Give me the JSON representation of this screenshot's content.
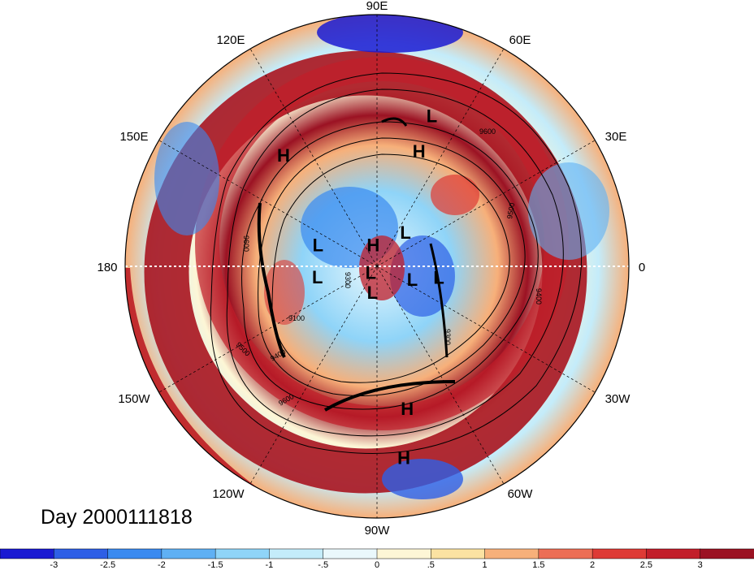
{
  "title": "Day 2000111818",
  "longitude_labels": [
    "90E",
    "60E",
    "30E",
    "0",
    "30W",
    "60W",
    "90W",
    "120W",
    "150W",
    "180",
    "150E",
    "120E"
  ],
  "pressure_systems": [
    {
      "type": "L",
      "lon": 70,
      "lat": 25
    },
    {
      "type": "H",
      "lon": 70,
      "lat": 38
    },
    {
      "type": "H",
      "lon": 130,
      "lat": 30
    },
    {
      "type": "L",
      "lon": -10,
      "lat": 62
    },
    {
      "type": "L",
      "lon": 50,
      "lat": 70
    },
    {
      "type": "H",
      "lon": 100,
      "lat": 80
    },
    {
      "type": "L",
      "lon": 160,
      "lat": 62
    },
    {
      "type": "L",
      "lon": -170,
      "lat": 63
    },
    {
      "type": "L",
      "lon": -135,
      "lat": 86
    },
    {
      "type": "L",
      "lon": -20,
      "lat": 73
    },
    {
      "type": "L",
      "lon": -100,
      "lat": 78
    },
    {
      "type": "H",
      "lon": -78,
      "lat": 30
    },
    {
      "type": "H",
      "lon": -82,
      "lat": 15
    }
  ],
  "contour_labels": [
    "9600",
    "9500",
    "9400",
    "9300",
    "9100",
    "9600",
    "9500",
    "9400",
    "9300",
    "9600"
  ],
  "colorbar": {
    "ticks": [
      "-3",
      "-2.5",
      "-2",
      "-1.5",
      "-1",
      "-.5",
      "0",
      ".5",
      "1",
      "1.5",
      "2",
      "2.5",
      "3"
    ],
    "colors": [
      "#1a1ad2",
      "#2e5fe6",
      "#3a8af0",
      "#5fb0f4",
      "#8fd4f8",
      "#c4ecfa",
      "#eaf8fc",
      "#fdf6d6",
      "#fbe2a2",
      "#f7b07a",
      "#ec6e55",
      "#de3a35",
      "#c21e2a",
      "#9b1223"
    ]
  }
}
